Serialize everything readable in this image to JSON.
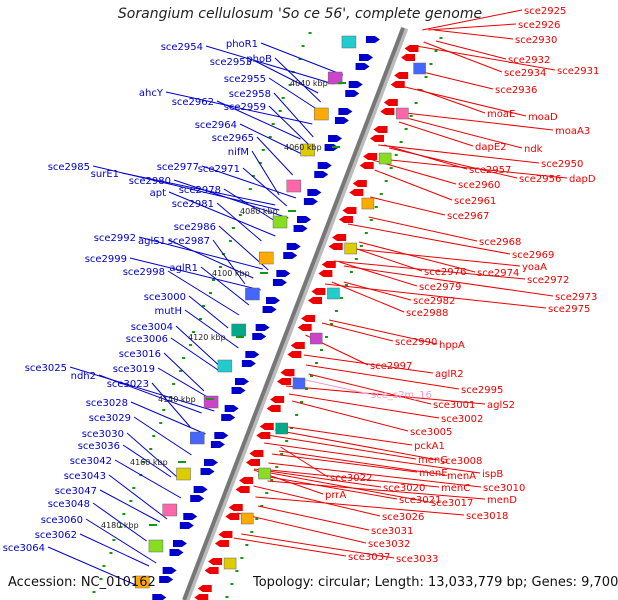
{
  "title": "Sorangium cellulosum 'So ce 56', complete genome",
  "footer": {
    "accession": "Accession: NC_010162",
    "topology": "Topology: circular; Length: 13,033,779 bp; Genes: 9,700"
  },
  "colors": {
    "forward": "#0000cc",
    "reverse": "#ee0000",
    "rna": "#ee99cc",
    "backbone": "#777777",
    "tick": "#119911"
  },
  "kbp_ticks": [
    "4040 kbp",
    "4060 kbp",
    "4080 kbp",
    "4100 kbp",
    "4120 kbp",
    "4140 kbp",
    "4160 kbp",
    "4180 kbp"
  ],
  "left_genes": [
    "phoR1",
    "sce2954",
    "phoB",
    "sce2953",
    "sce2955",
    "sce2958",
    "ahcY",
    "sce2962",
    "sce2959",
    "sce2964",
    "sce2965",
    "nifM",
    "sce2977",
    "sce2971",
    "sce2985",
    "surE1",
    "sce2980",
    "apt",
    "sce2978",
    "sce2981",
    "sce2986",
    "sce2992",
    "aglS1",
    "sce2987",
    "sce2999",
    "aglR1",
    "sce2998",
    "sce3000",
    "mutH",
    "sce3004",
    "sce3006",
    "sce3016",
    "sce3025",
    "sce3019",
    "ndh2",
    "sce3023",
    "sce3028",
    "sce3029",
    "sce3030",
    "sce3036",
    "sce3042",
    "sce3043",
    "sce3047",
    "sce3048",
    "sce3060",
    "sce3062",
    "sce3064"
  ],
  "right_genes": [
    "sce2925",
    "sce2926",
    "sce2930",
    "sce2932",
    "sce2931",
    "sce2934",
    "sce2936",
    "moaE",
    "moaD",
    "moaA3",
    "dapE2",
    "ndk",
    "sce2950",
    "sce2957",
    "sce2956",
    "dapD",
    "sce2960",
    "sce2961",
    "sce2967",
    "sce2968",
    "sce2969",
    "yoaA",
    "sce2976",
    "sce2974",
    "sce2972",
    "sce2979",
    "sce2973",
    "sce2982",
    "sce2975",
    "sce2988",
    "sce2990",
    "hppA",
    "sce2997",
    "aglR2",
    "sce2995",
    "sce3001",
    "aglS2",
    "sce3002",
    "sce3005",
    "pckA1",
    "menG",
    "sce3008",
    "menE",
    "menA",
    "ispB",
    "menC",
    "sce3010",
    "sce3022",
    "sce3020",
    "sce3021",
    "sce3017",
    "menD",
    "prrA",
    "sce3026",
    "sce3018",
    "sce3031",
    "sce3032",
    "sce3037",
    "sce3033"
  ],
  "rna_genes": [
    "sce_s2m_16"
  ]
}
